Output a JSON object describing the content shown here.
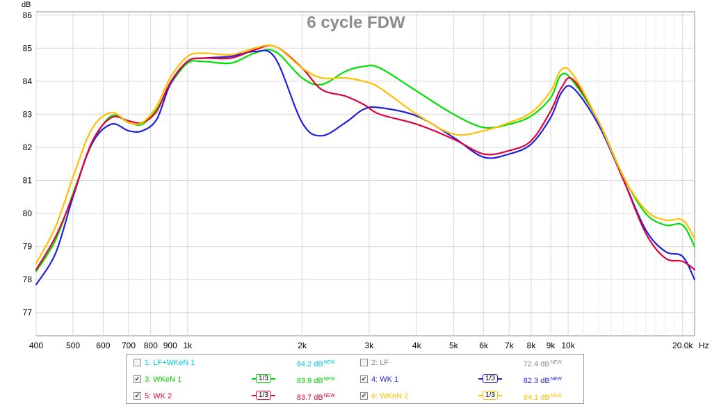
{
  "chart_data": {
    "type": "line",
    "title": "6 cycle FDW",
    "ylabel": "dB",
    "xunit": "Hz",
    "xscale": "log",
    "xlim": [
      400,
      21500
    ],
    "ylim": [
      76.3,
      86.1
    ],
    "grid": true,
    "y_ticks": [
      "86",
      "85",
      "84",
      "83",
      "82",
      "81",
      "80",
      "79",
      "78",
      "77"
    ],
    "x_ticks": [
      {
        "v": 400,
        "label": "400"
      },
      {
        "v": 500,
        "label": "500"
      },
      {
        "v": 600,
        "label": "600"
      },
      {
        "v": 700,
        "label": "700"
      },
      {
        "v": 800,
        "label": "800"
      },
      {
        "v": 900,
        "label": "900"
      },
      {
        "v": 1000,
        "label": "1k"
      },
      {
        "v": 2000,
        "label": "2k"
      },
      {
        "v": 3000,
        "label": "3k"
      },
      {
        "v": 4000,
        "label": "4k"
      },
      {
        "v": 5000,
        "label": "5k"
      },
      {
        "v": 6000,
        "label": "6k"
      },
      {
        "v": 7000,
        "label": "7k"
      },
      {
        "v": 8000,
        "label": "8k"
      },
      {
        "v": 9000,
        "label": "9k"
      },
      {
        "v": 10000,
        "label": "10k"
      },
      {
        "v": 20000,
        "label": "20.0k"
      }
    ],
    "series": [
      {
        "name": "WKeN 1",
        "color": "#00e000",
        "x": [
          400,
          450,
          500,
          560,
          630,
          700,
          760,
          830,
          900,
          1000,
          1100,
          1300,
          1500,
          1700,
          2000,
          2250,
          2600,
          2900,
          3200,
          4000,
          5000,
          6000,
          7000,
          8000,
          9000,
          9600,
          10300,
          12000,
          14000,
          16000,
          18000,
          20000,
          21500
        ],
        "y": [
          78.25,
          79.2,
          80.6,
          82.1,
          82.95,
          82.75,
          82.7,
          83.15,
          83.9,
          84.55,
          84.6,
          84.55,
          84.85,
          84.9,
          84.1,
          83.9,
          84.3,
          84.45,
          84.4,
          83.7,
          83.0,
          82.6,
          82.7,
          82.95,
          83.5,
          84.2,
          84.0,
          82.8,
          81.1,
          80.0,
          79.65,
          79.65,
          79.0
        ]
      },
      {
        "name": "WK 1",
        "color": "#1f1fe0",
        "x": [
          400,
          450,
          500,
          560,
          630,
          700,
          760,
          830,
          900,
          1000,
          1100,
          1300,
          1500,
          1700,
          2000,
          2250,
          2600,
          2900,
          3200,
          4000,
          5000,
          6000,
          7000,
          8000,
          9000,
          9600,
          10300,
          12000,
          14000,
          16000,
          18000,
          20000,
          21500
        ],
        "y": [
          77.85,
          78.8,
          80.5,
          82.1,
          82.7,
          82.5,
          82.5,
          82.85,
          83.9,
          84.6,
          84.7,
          84.75,
          84.9,
          84.7,
          82.75,
          82.35,
          82.75,
          83.15,
          83.2,
          82.95,
          82.3,
          81.7,
          81.8,
          82.1,
          82.9,
          83.65,
          83.8,
          82.7,
          81.0,
          79.5,
          78.85,
          78.7,
          78.0
        ]
      },
      {
        "name": "WK 2",
        "color": "#e0003a",
        "x": [
          400,
          450,
          500,
          560,
          630,
          700,
          760,
          830,
          900,
          1000,
          1100,
          1300,
          1500,
          1700,
          2000,
          2250,
          2600,
          2900,
          3200,
          4000,
          5000,
          6000,
          7000,
          8000,
          9000,
          9600,
          10300,
          12000,
          14000,
          16000,
          18000,
          20000,
          21500
        ],
        "y": [
          78.3,
          79.3,
          80.55,
          82.15,
          82.9,
          82.8,
          82.75,
          83.1,
          83.95,
          84.6,
          84.7,
          84.7,
          84.95,
          85.05,
          84.4,
          83.75,
          83.55,
          83.3,
          83.0,
          82.7,
          82.25,
          81.8,
          81.9,
          82.2,
          83.1,
          83.8,
          84.05,
          82.8,
          81.0,
          79.4,
          78.65,
          78.55,
          78.3
        ]
      },
      {
        "name": "WKeN 2",
        "color": "#ffc000",
        "x": [
          400,
          450,
          500,
          560,
          630,
          700,
          760,
          830,
          900,
          1000,
          1100,
          1300,
          1500,
          1700,
          2000,
          2250,
          2600,
          2900,
          3200,
          4000,
          5000,
          6000,
          7000,
          8000,
          9000,
          9600,
          10300,
          12000,
          14000,
          16000,
          18000,
          20000,
          21500
        ],
        "y": [
          78.5,
          79.6,
          81.1,
          82.55,
          83.05,
          82.75,
          82.75,
          83.25,
          84.1,
          84.75,
          84.85,
          84.8,
          85.0,
          85.05,
          84.4,
          84.1,
          84.1,
          84.0,
          83.8,
          83.0,
          82.4,
          82.5,
          82.75,
          83.05,
          83.7,
          84.35,
          84.2,
          82.8,
          81.1,
          80.1,
          79.8,
          79.8,
          79.25
        ]
      }
    ]
  },
  "legend": {
    "items": [
      {
        "label": "1: LF+WKeN 1",
        "color": "#00c8e0",
        "checked": false,
        "smoothing": "",
        "level": "84.2 dB",
        "badge": "NEW"
      },
      {
        "label": "2: LF",
        "color": "#8c8c8c",
        "checked": false,
        "smoothing": "",
        "level": "72.4 dB",
        "badge": "NEW"
      },
      {
        "label": "3: WKeN 1",
        "color": "#00d000",
        "checked": true,
        "smoothing": "1/3",
        "level": "83.9 dB",
        "badge": "NEW"
      },
      {
        "label": "4: WK 1",
        "color": "#1f1fe0",
        "checked": true,
        "smoothing": "1/3",
        "level": "82.3 dB",
        "badge": "NEW"
      },
      {
        "label": "5: WK 2",
        "color": "#e0003a",
        "checked": true,
        "smoothing": "1/3",
        "level": "83.7 dB",
        "badge": "NEW"
      },
      {
        "label": "6: WKeN 2",
        "color": "#ffc000",
        "checked": true,
        "smoothing": "1/3",
        "level": "84.1 dB",
        "badge": "NEW"
      }
    ]
  }
}
